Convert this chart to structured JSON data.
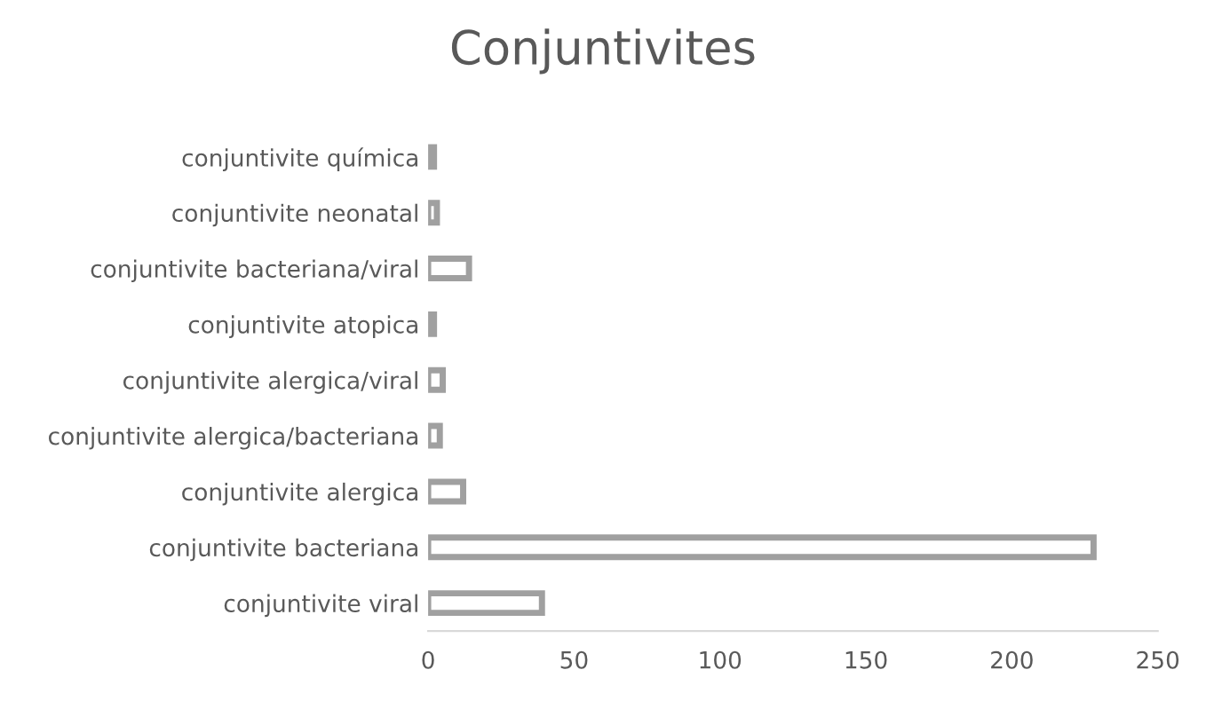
{
  "chart_data": {
    "type": "bar",
    "orientation": "horizontal",
    "title": "Conjuntivites",
    "categories": [
      "conjuntivite química",
      "conjuntivite neonatal",
      "conjuntivite bacteriana/viral",
      "conjuntivite atopica",
      "conjuntivite alergica/viral",
      "conjuntivite alergica/bacteriana",
      "conjuntivite alergica",
      "conjuntivite bacteriana",
      "conjuntivite viral"
    ],
    "values": [
      2,
      3,
      14,
      2,
      5,
      4,
      12,
      228,
      39
    ],
    "color": "#a0a0a0",
    "xlim": [
      0,
      250
    ],
    "xticks": [
      0,
      50,
      100,
      150,
      200,
      250
    ],
    "grid": false,
    "legend": false
  }
}
